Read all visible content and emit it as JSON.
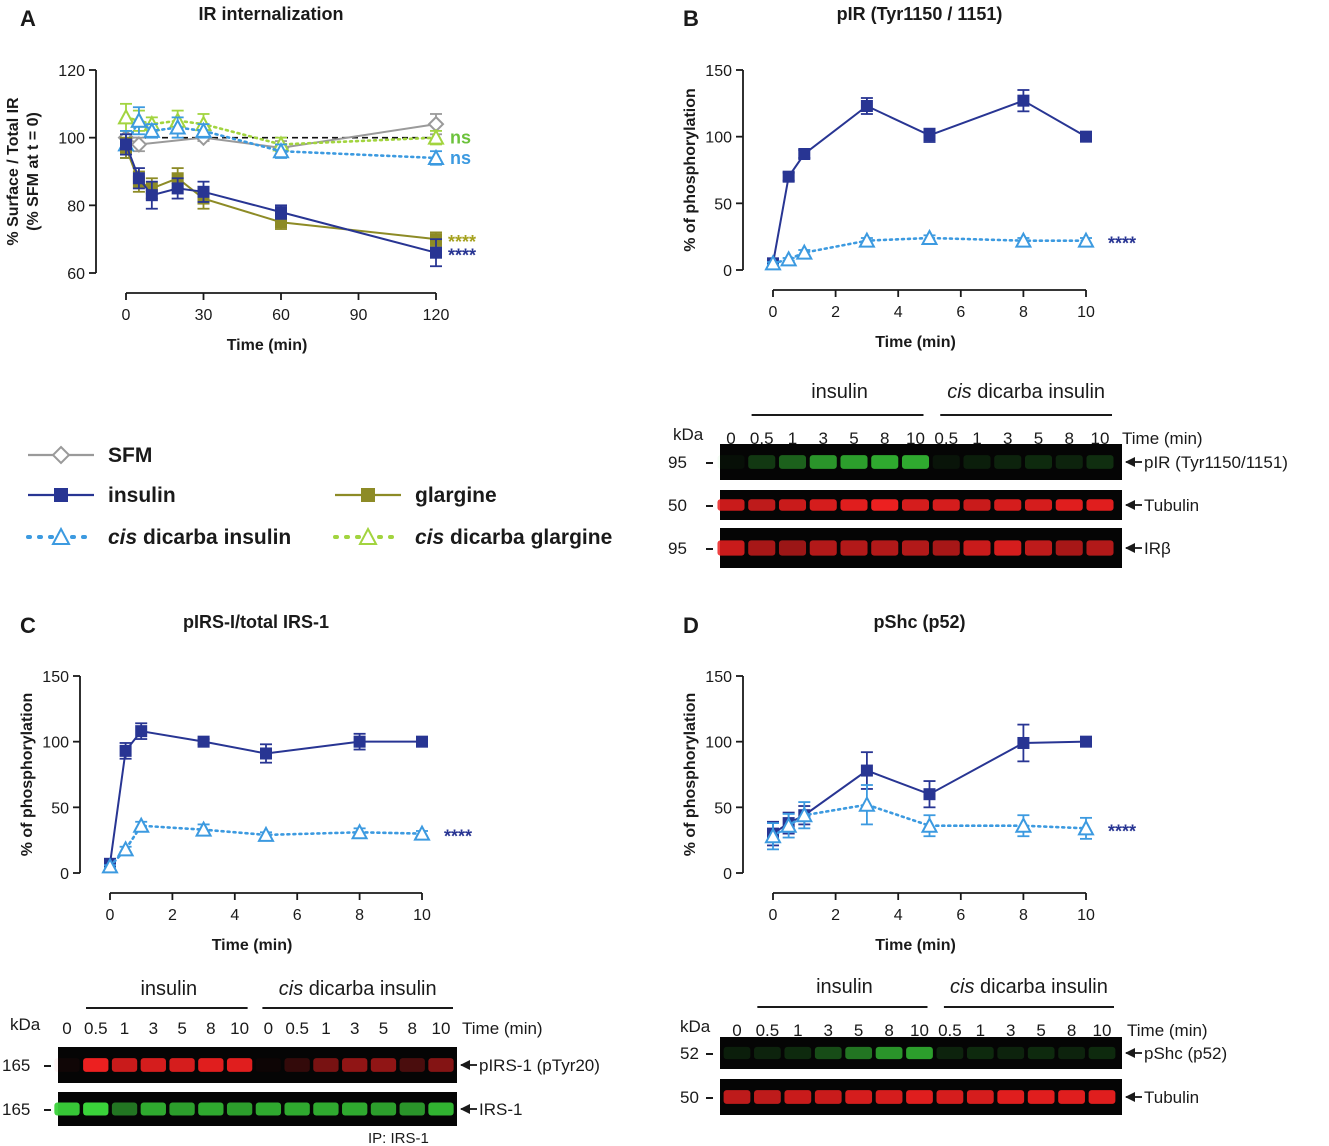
{
  "colors": {
    "sfm": "#9a9a9a",
    "insulin": "#283593",
    "cis_insulin": "#3c9ae0",
    "glargine": "#8d8b26",
    "cis_glargine": "#a2d43f",
    "ns_green": "#6cc23c",
    "star_gold": "#a5a11e",
    "blot_green": "#3ad23a",
    "blot_red": "#ec2020"
  },
  "legend": {
    "sfm": "SFM",
    "insulin": "insulin",
    "glargine": "glargine",
    "cis_italic": "cis",
    "cis_insulin_rest": " dicarba insulin",
    "cis_glargine_rest": " dicarba glargine"
  },
  "chart_data": [
    {
      "panel": "A",
      "type": "line",
      "title": "IR internalization",
      "xlabel": "Time (min)",
      "ylabel": [
        "% Surface / Total IR",
        "(% SFM at t = 0)"
      ],
      "xlim": [
        0,
        120
      ],
      "ylim": [
        60,
        120
      ],
      "xticks": [
        0,
        30,
        60,
        90,
        120
      ],
      "yticks": [
        60,
        80,
        100,
        120
      ],
      "reference_line": 100,
      "series": [
        {
          "key": "sfm",
          "name": "SFM",
          "x": [
            0,
            5,
            30,
            60,
            120
          ],
          "y": [
            100,
            98,
            100,
            97,
            104
          ],
          "err": [
            2,
            2,
            1,
            2,
            3
          ]
        },
        {
          "key": "cis_glargine",
          "name": "cis dicarba glargine",
          "x": [
            0,
            5,
            10,
            20,
            30,
            60,
            120
          ],
          "y": [
            106,
            105,
            104,
            105,
            104,
            98,
            100
          ],
          "err": [
            4,
            3,
            2,
            3,
            3,
            2,
            2
          ]
        },
        {
          "key": "cis_insulin",
          "name": "cis dicarba insulin",
          "x": [
            0,
            5,
            10,
            20,
            30,
            60,
            120
          ],
          "y": [
            98,
            105,
            102,
            103,
            102,
            96,
            94
          ],
          "err": [
            4,
            4,
            2,
            3,
            2,
            2,
            2
          ]
        },
        {
          "key": "glargine",
          "name": "glargine",
          "x": [
            0,
            5,
            10,
            20,
            30,
            60,
            120
          ],
          "y": [
            97,
            87,
            85,
            88,
            82,
            75,
            70
          ],
          "err": [
            3,
            3,
            3,
            3,
            3,
            2,
            2
          ]
        },
        {
          "key": "insulin",
          "name": "insulin",
          "x": [
            0,
            5,
            10,
            20,
            30,
            60,
            120
          ],
          "y": [
            98,
            88,
            83,
            85,
            84,
            78,
            66
          ],
          "err": [
            3,
            3,
            4,
            3,
            3,
            2,
            4
          ]
        }
      ],
      "annotations": [
        {
          "text": "ns",
          "y": 100,
          "color_key": "ns_green"
        },
        {
          "text": "ns",
          "y": 94,
          "color_key": "cis_insulin"
        },
        {
          "text": "****",
          "y": 70,
          "color_key": "star_gold"
        },
        {
          "text": "****",
          "y": 66,
          "color_key": "insulin"
        }
      ]
    },
    {
      "panel": "B",
      "type": "line",
      "title": "pIR (Tyr1150 / 1151)",
      "xlabel": "Time (min)",
      "ylabel": [
        "% of phosphorylation"
      ],
      "xlim": [
        0,
        10
      ],
      "ylim": [
        0,
        150
      ],
      "xticks": [
        0,
        2,
        4,
        6,
        8,
        10
      ],
      "yticks": [
        0,
        50,
        100,
        150
      ],
      "series": [
        {
          "key": "insulin",
          "name": "insulin",
          "x": [
            0,
            0.5,
            1,
            3,
            5,
            8,
            10
          ],
          "y": [
            5,
            70,
            87,
            123,
            101,
            127,
            100
          ],
          "err": [
            2,
            3,
            3,
            6,
            5,
            8,
            0
          ]
        },
        {
          "key": "cis_insulin",
          "name": "cis dicarba insulin",
          "x": [
            0,
            0.5,
            1,
            3,
            5,
            8,
            10
          ],
          "y": [
            5,
            8,
            13,
            22,
            24,
            22,
            22
          ],
          "err": [
            1,
            1,
            2,
            2,
            2,
            2,
            2
          ]
        }
      ],
      "annotations": [
        {
          "text": "****",
          "y": 22,
          "color_key": "insulin"
        }
      ]
    },
    {
      "panel": "C",
      "type": "line",
      "title": "pIRS-I/total IRS-1",
      "xlabel": "Time (min)",
      "ylabel": [
        "% of phosphorylation"
      ],
      "xlim": [
        0,
        10
      ],
      "ylim": [
        0,
        150
      ],
      "xticks": [
        0,
        2,
        4,
        6,
        8,
        10
      ],
      "yticks": [
        0,
        50,
        100,
        150
      ],
      "series": [
        {
          "key": "insulin",
          "name": "insulin",
          "x": [
            0,
            0.5,
            1,
            3,
            5,
            8,
            10
          ],
          "y": [
            7,
            93,
            108,
            100,
            91,
            100,
            100
          ],
          "err": [
            2,
            6,
            6,
            2,
            7,
            6,
            0
          ]
        },
        {
          "key": "cis_insulin",
          "name": "cis dicarba insulin",
          "x": [
            0,
            0.5,
            1,
            3,
            5,
            8,
            10
          ],
          "y": [
            5,
            18,
            36,
            33,
            29,
            31,
            30
          ],
          "err": [
            1,
            2,
            3,
            4,
            2,
            3,
            2
          ]
        }
      ],
      "annotations": [
        {
          "text": "****",
          "y": 30,
          "color_key": "insulin"
        }
      ]
    },
    {
      "panel": "D",
      "type": "line",
      "title": "pShc (p52)",
      "xlabel": "Time (min)",
      "ylabel": [
        "% of phosphorylation"
      ],
      "xlim": [
        0,
        10
      ],
      "ylim": [
        0,
        150
      ],
      "xticks": [
        0,
        2,
        4,
        6,
        8,
        10
      ],
      "yticks": [
        0,
        50,
        100,
        150
      ],
      "series": [
        {
          "key": "insulin",
          "name": "insulin",
          "x": [
            0,
            0.5,
            1,
            3,
            5,
            8,
            10
          ],
          "y": [
            30,
            38,
            44,
            78,
            60,
            99,
            100
          ],
          "err": [
            9,
            8,
            7,
            14,
            10,
            14,
            0
          ]
        },
        {
          "key": "cis_insulin",
          "name": "cis dicarba insulin",
          "x": [
            0,
            0.5,
            1,
            3,
            5,
            8,
            10
          ],
          "y": [
            28,
            36,
            44,
            52,
            36,
            36,
            34
          ],
          "err": [
            10,
            9,
            10,
            15,
            8,
            8,
            8
          ]
        }
      ],
      "annotations": [
        {
          "text": "****",
          "y": 34,
          "color_key": "insulin"
        }
      ]
    }
  ],
  "blots": [
    {
      "panel": "B",
      "group_labels": [
        "insulin",
        "dicarba insulin"
      ],
      "group_italic": "cis",
      "kda_label": "kDa",
      "lanes": [
        "0",
        "0.5",
        "1",
        "3",
        "5",
        "8",
        "10",
        "0.5",
        "1",
        "3",
        "5",
        "8",
        "10"
      ],
      "time_label": "Time (min)",
      "rows": [
        {
          "marker": "95",
          "label": "pIR (Tyr1150/1151)",
          "color_key": "blot_green",
          "intensity": [
            0.05,
            0.25,
            0.45,
            0.7,
            0.75,
            0.8,
            0.8,
            0.08,
            0.12,
            0.15,
            0.18,
            0.15,
            0.2
          ]
        },
        {
          "marker": "50",
          "label": "Tubulin",
          "color_key": "blot_red",
          "intensity": [
            0.85,
            0.8,
            0.85,
            0.9,
            0.95,
            1,
            0.9,
            0.9,
            0.85,
            0.9,
            0.9,
            0.95,
            0.95
          ]
        },
        {
          "marker": "95",
          "label": "IRβ",
          "color_key": "blot_red",
          "intensity": [
            0.85,
            0.7,
            0.65,
            0.75,
            0.75,
            0.75,
            0.75,
            0.7,
            0.85,
            0.9,
            0.8,
            0.7,
            0.75
          ]
        }
      ]
    },
    {
      "panel": "C",
      "group_labels": [
        "insulin",
        "dicarba insulin"
      ],
      "group_italic": "cis",
      "kda_label": "kDa",
      "lanes": [
        "0",
        "0.5",
        "1",
        "3",
        "5",
        "8",
        "10",
        "0",
        "0.5",
        "1",
        "3",
        "5",
        "8",
        "10"
      ],
      "time_label": "Time (min)",
      "footnote": "IP: IRS-1",
      "rows": [
        {
          "marker": "165",
          "label": "pIRS-1 (pTyr20)",
          "color_key": "blot_red",
          "intensity": [
            0.05,
            1,
            0.85,
            0.9,
            0.9,
            0.95,
            0.95,
            0.03,
            0.2,
            0.5,
            0.6,
            0.6,
            0.3,
            0.55
          ]
        },
        {
          "marker": "165",
          "label": "IRS-1",
          "color_key": "blot_green",
          "intensity": [
            0.95,
            1,
            0.55,
            0.8,
            0.75,
            0.8,
            0.75,
            0.8,
            0.8,
            0.8,
            0.8,
            0.75,
            0.7,
            0.85
          ]
        }
      ]
    },
    {
      "panel": "D",
      "group_labels": [
        "insulin",
        "dicarba insulin"
      ],
      "group_italic": "cis",
      "kda_label": "kDa",
      "lanes": [
        "0",
        "0.5",
        "1",
        "3",
        "5",
        "8",
        "10",
        "0.5",
        "1",
        "3",
        "5",
        "8",
        "10"
      ],
      "time_label": "Time (min)",
      "rows": [
        {
          "marker": "52",
          "label": "pShc (p52)",
          "color_key": "blot_green",
          "intensity": [
            0.12,
            0.15,
            0.18,
            0.35,
            0.55,
            0.7,
            0.75,
            0.15,
            0.18,
            0.15,
            0.18,
            0.15,
            0.18
          ]
        },
        {
          "marker": "50",
          "label": "Tubulin",
          "color_key": "blot_red",
          "intensity": [
            0.8,
            0.8,
            0.85,
            0.85,
            0.9,
            0.9,
            0.95,
            0.9,
            0.9,
            0.95,
            0.95,
            0.95,
            0.95
          ]
        }
      ]
    }
  ]
}
